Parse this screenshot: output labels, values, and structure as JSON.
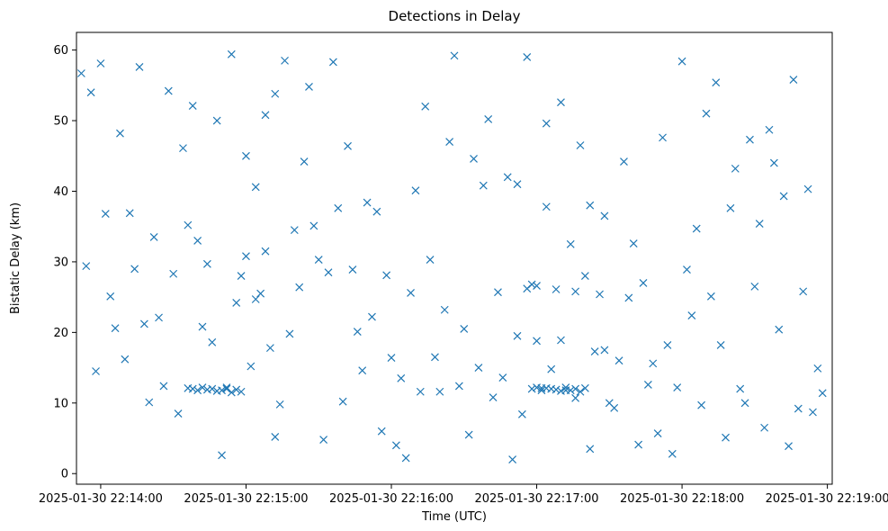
{
  "chart_data": {
    "type": "scatter",
    "title": "Detections in Delay",
    "xlabel": "Time (UTC)",
    "ylabel": "Bistatic Delay (km)",
    "marker": "x",
    "color": "#1f77b4",
    "grid": false,
    "legend": "none",
    "xlim": [
      "2025-01-30 22:13:50",
      "2025-01-30 22:19:02"
    ],
    "ylim": [
      -1.5,
      62.5
    ],
    "x_ticks": [
      "2025-01-30 22:14:00",
      "2025-01-30 22:15:00",
      "2025-01-30 22:16:00",
      "2025-01-30 22:17:00",
      "2025-01-30 22:18:00",
      "2025-01-30 22:19:00"
    ],
    "y_ticks": [
      "0",
      "10",
      "20",
      "30",
      "40",
      "50",
      "60"
    ],
    "points_time": [
      "2025-01-30 22:13:52",
      "2025-01-30 22:13:54",
      "2025-01-30 22:13:56",
      "2025-01-30 22:13:58",
      "2025-01-30 22:14:00",
      "2025-01-30 22:14:02",
      "2025-01-30 22:14:04",
      "2025-01-30 22:14:06",
      "2025-01-30 22:14:08",
      "2025-01-30 22:14:10",
      "2025-01-30 22:14:12",
      "2025-01-30 22:14:14",
      "2025-01-30 22:14:16",
      "2025-01-30 22:14:18",
      "2025-01-30 22:14:20",
      "2025-01-30 22:14:22",
      "2025-01-30 22:14:24",
      "2025-01-30 22:14:26",
      "2025-01-30 22:14:28",
      "2025-01-30 22:14:30",
      "2025-01-30 22:14:32",
      "2025-01-30 22:14:34",
      "2025-01-30 22:14:36",
      "2025-01-30 22:14:38",
      "2025-01-30 22:14:40",
      "2025-01-30 22:14:42",
      "2025-01-30 22:14:44",
      "2025-01-30 22:14:46",
      "2025-01-30 22:14:48",
      "2025-01-30 22:14:50",
      "2025-01-30 22:14:52",
      "2025-01-30 22:14:54",
      "2025-01-30 22:14:56",
      "2025-01-30 22:14:58",
      "2025-01-30 22:15:00",
      "2025-01-30 22:15:02",
      "2025-01-30 22:15:04",
      "2025-01-30 22:15:06",
      "2025-01-30 22:15:08",
      "2025-01-30 22:15:10",
      "2025-01-30 22:15:12",
      "2025-01-30 22:15:14",
      "2025-01-30 22:15:16",
      "2025-01-30 22:15:18",
      "2025-01-30 22:15:20",
      "2025-01-30 22:15:22",
      "2025-01-30 22:15:24",
      "2025-01-30 22:15:26",
      "2025-01-30 22:15:28",
      "2025-01-30 22:15:30",
      "2025-01-30 22:15:32",
      "2025-01-30 22:15:34",
      "2025-01-30 22:15:36",
      "2025-01-30 22:15:38",
      "2025-01-30 22:15:40",
      "2025-01-30 22:15:42",
      "2025-01-30 22:15:44",
      "2025-01-30 22:15:46",
      "2025-01-30 22:15:48",
      "2025-01-30 22:15:50",
      "2025-01-30 22:15:52",
      "2025-01-30 22:15:54",
      "2025-01-30 22:15:56",
      "2025-01-30 22:15:58",
      "2025-01-30 22:16:00",
      "2025-01-30 22:16:02",
      "2025-01-30 22:16:04",
      "2025-01-30 22:16:06",
      "2025-01-30 22:16:08",
      "2025-01-30 22:16:10",
      "2025-01-30 22:16:12",
      "2025-01-30 22:16:14",
      "2025-01-30 22:16:16",
      "2025-01-30 22:16:18",
      "2025-01-30 22:16:20",
      "2025-01-30 22:16:22",
      "2025-01-30 22:16:24",
      "2025-01-30 22:16:26",
      "2025-01-30 22:16:28",
      "2025-01-30 22:16:30",
      "2025-01-30 22:16:32",
      "2025-01-30 22:16:34",
      "2025-01-30 22:16:36",
      "2025-01-30 22:16:38",
      "2025-01-30 22:16:40",
      "2025-01-30 22:16:42",
      "2025-01-30 22:16:44",
      "2025-01-30 22:16:46",
      "2025-01-30 22:16:48",
      "2025-01-30 22:16:50",
      "2025-01-30 22:16:52",
      "2025-01-30 22:16:54",
      "2025-01-30 22:16:56",
      "2025-01-30 22:16:58",
      "2025-01-30 22:17:00",
      "2025-01-30 22:17:02",
      "2025-01-30 22:17:04",
      "2025-01-30 22:17:06",
      "2025-01-30 22:17:08",
      "2025-01-30 22:17:10",
      "2025-01-30 22:17:12",
      "2025-01-30 22:17:14",
      "2025-01-30 22:17:16",
      "2025-01-30 22:17:18",
      "2025-01-30 22:17:20",
      "2025-01-30 22:17:22",
      "2025-01-30 22:17:24",
      "2025-01-30 22:17:26",
      "2025-01-30 22:17:28",
      "2025-01-30 22:17:30",
      "2025-01-30 22:17:32",
      "2025-01-30 22:17:34",
      "2025-01-30 22:17:36",
      "2025-01-30 22:17:38",
      "2025-01-30 22:17:40",
      "2025-01-30 22:17:42",
      "2025-01-30 22:17:44",
      "2025-01-30 22:17:46",
      "2025-01-30 22:17:48",
      "2025-01-30 22:17:50",
      "2025-01-30 22:17:52",
      "2025-01-30 22:17:54",
      "2025-01-30 22:17:56",
      "2025-01-30 22:17:58",
      "2025-01-30 22:18:00",
      "2025-01-30 22:18:02",
      "2025-01-30 22:18:04",
      "2025-01-30 22:18:06",
      "2025-01-30 22:18:08",
      "2025-01-30 22:18:10",
      "2025-01-30 22:18:12",
      "2025-01-30 22:18:14",
      "2025-01-30 22:18:16",
      "2025-01-30 22:18:18",
      "2025-01-30 22:18:20",
      "2025-01-30 22:18:22",
      "2025-01-30 22:18:24",
      "2025-01-30 22:18:26",
      "2025-01-30 22:18:28",
      "2025-01-30 22:18:30",
      "2025-01-30 22:18:32",
      "2025-01-30 22:18:34",
      "2025-01-30 22:18:36",
      "2025-01-30 22:18:38",
      "2025-01-30 22:18:40",
      "2025-01-30 22:18:42",
      "2025-01-30 22:18:44",
      "2025-01-30 22:18:46",
      "2025-01-30 22:18:48",
      "2025-01-30 22:18:50",
      "2025-01-30 22:18:52",
      "2025-01-30 22:18:54",
      "2025-01-30 22:18:56",
      "2025-01-30 22:18:58",
      "2025-01-30 22:14:36",
      "2025-01-30 22:14:38",
      "2025-01-30 22:14:40",
      "2025-01-30 22:14:42",
      "2025-01-30 22:14:44",
      "2025-01-30 22:14:46",
      "2025-01-30 22:14:48",
      "2025-01-30 22:14:50",
      "2025-01-30 22:14:52",
      "2025-01-30 22:14:54",
      "2025-01-30 22:14:56",
      "2025-01-30 22:14:58",
      "2025-01-30 22:16:58",
      "2025-01-30 22:17:00",
      "2025-01-30 22:17:02",
      "2025-01-30 22:17:04",
      "2025-01-30 22:17:06",
      "2025-01-30 22:17:08",
      "2025-01-30 22:17:10",
      "2025-01-30 22:17:12",
      "2025-01-30 22:17:14",
      "2025-01-30 22:17:16",
      "2025-01-30 22:17:18",
      "2025-01-30 22:17:20",
      "2025-01-30 22:15:00",
      "2025-01-30 22:15:04",
      "2025-01-30 22:15:08",
      "2025-01-30 22:15:12",
      "2025-01-30 22:16:52",
      "2025-01-30 22:16:56",
      "2025-01-30 22:17:00",
      "2025-01-30 22:17:04",
      "2025-01-30 22:17:10",
      "2025-01-30 22:17:16",
      "2025-01-30 22:17:22",
      "2025-01-30 22:17:28"
    ],
    "points_delay_km": [
      56.7,
      29.4,
      54.0,
      14.5,
      58.1,
      36.8,
      25.1,
      20.6,
      48.2,
      16.2,
      36.9,
      29.0,
      57.6,
      21.2,
      10.1,
      33.5,
      22.1,
      12.4,
      54.2,
      28.3,
      8.5,
      46.1,
      35.2,
      52.1,
      33.0,
      20.8,
      29.7,
      18.6,
      50.0,
      2.6,
      12.2,
      59.4,
      24.2,
      28.0,
      30.8,
      15.2,
      40.6,
      25.5,
      50.8,
      17.8,
      53.8,
      9.8,
      58.5,
      19.8,
      34.5,
      26.4,
      44.2,
      54.8,
      35.1,
      30.3,
      4.8,
      28.5,
      58.3,
      37.6,
      10.2,
      46.4,
      28.9,
      20.1,
      14.6,
      38.4,
      22.2,
      37.1,
      6.0,
      28.1,
      16.4,
      4.0,
      13.5,
      2.2,
      25.6,
      40.1,
      11.6,
      52.0,
      30.3,
      16.5,
      11.6,
      23.2,
      47.0,
      59.2,
      12.4,
      20.5,
      5.5,
      44.6,
      15.0,
      40.8,
      50.2,
      10.8,
      25.7,
      13.6,
      42.0,
      2.0,
      19.5,
      8.4,
      59.0,
      26.8,
      18.8,
      12.1,
      49.6,
      14.8,
      26.1,
      18.9,
      11.8,
      32.5,
      10.7,
      46.5,
      28.0,
      38.0,
      17.3,
      25.4,
      36.5,
      10.0,
      9.3,
      16.0,
      44.2,
      24.9,
      32.6,
      4.1,
      27.0,
      12.6,
      15.6,
      5.7,
      47.6,
      18.2,
      2.8,
      12.2,
      58.4,
      28.9,
      22.4,
      34.7,
      9.7,
      51.0,
      25.1,
      55.4,
      18.2,
      5.1,
      37.6,
      43.2,
      12.0,
      10.0,
      47.3,
      26.5,
      35.4,
      6.5,
      48.7,
      44.0,
      20.4,
      39.3,
      3.9,
      55.8,
      9.2,
      25.8,
      40.3,
      8.7,
      14.9,
      11.4,
      12.1,
      12.0,
      11.8,
      12.2,
      11.9,
      12.0,
      11.7,
      11.8,
      12.0,
      11.5,
      11.9,
      11.6,
      12.0,
      12.2,
      11.8,
      12.1,
      12.0,
      11.9,
      11.7,
      12.2,
      11.8,
      12.0,
      11.6,
      12.1,
      45.0,
      24.7,
      31.5,
      5.2,
      41.0,
      26.2,
      26.6,
      37.8,
      52.6,
      25.8,
      3.5,
      17.5
    ]
  }
}
